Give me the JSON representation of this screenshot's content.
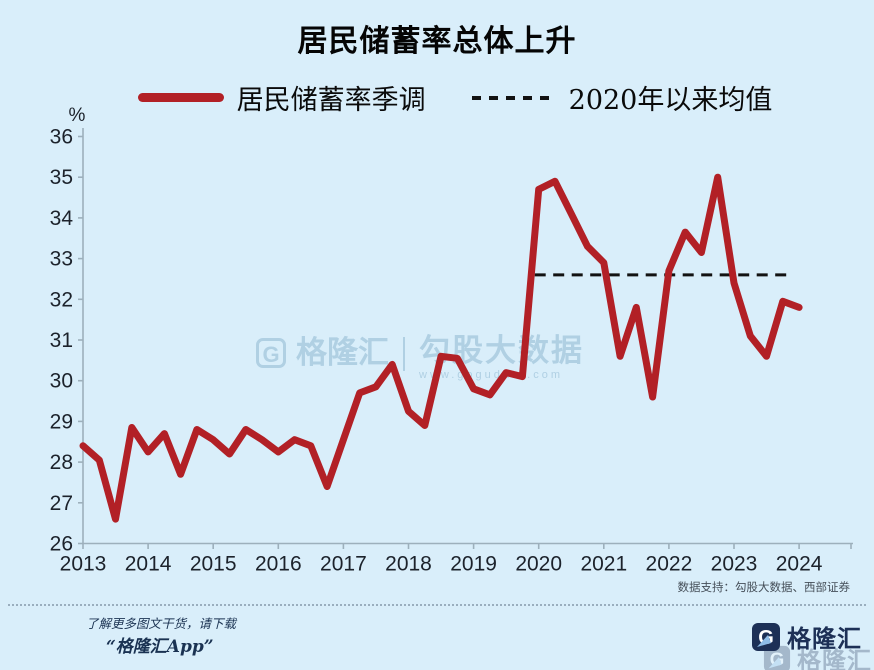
{
  "title": "居民储蓄率总体上升",
  "chart_data": {
    "type": "line",
    "title": "居民储蓄率总体上升",
    "legend_position": "top",
    "grid": false,
    "y_axis": {
      "unit": "%",
      "min": 26,
      "max": 36,
      "tick_step": 1,
      "ticks": [
        26,
        27,
        28,
        29,
        30,
        31,
        32,
        33,
        34,
        35,
        36
      ]
    },
    "x_axis": {
      "year_labels": [
        "2013",
        "2014",
        "2015",
        "2016",
        "2017",
        "2018",
        "2019",
        "2020",
        "2021",
        "2022",
        "2023",
        "2024"
      ]
    },
    "x": [
      "2013Q1",
      "2013Q2",
      "2013Q3",
      "2013Q4",
      "2014Q1",
      "2014Q2",
      "2014Q3",
      "2014Q4",
      "2015Q1",
      "2015Q2",
      "2015Q3",
      "2015Q4",
      "2016Q1",
      "2016Q2",
      "2016Q3",
      "2016Q4",
      "2017Q1",
      "2017Q2",
      "2017Q3",
      "2017Q4",
      "2018Q1",
      "2018Q2",
      "2018Q3",
      "2018Q4",
      "2019Q1",
      "2019Q2",
      "2019Q3",
      "2019Q4",
      "2020Q1",
      "2020Q2",
      "2020Q3",
      "2020Q4",
      "2021Q1",
      "2021Q2",
      "2021Q3",
      "2021Q4",
      "2022Q1",
      "2022Q2",
      "2022Q3",
      "2022Q4",
      "2023Q1",
      "2023Q2",
      "2023Q3",
      "2023Q4",
      "2024Q1"
    ],
    "series": [
      {
        "name": "居民储蓄率季调",
        "color": "#b22026",
        "values": [
          28.4,
          28.05,
          26.6,
          28.85,
          28.25,
          28.7,
          27.7,
          28.8,
          28.55,
          28.2,
          28.8,
          28.55,
          28.25,
          28.55,
          28.4,
          27.4,
          28.55,
          29.7,
          29.85,
          30.4,
          29.25,
          28.9,
          30.6,
          30.55,
          29.8,
          29.65,
          30.2,
          30.1,
          34.7,
          34.9,
          34.1,
          33.3,
          32.9,
          30.6,
          31.8,
          29.6,
          32.7,
          33.65,
          33.15,
          35.0,
          32.4,
          31.1,
          30.6,
          31.95,
          31.8
        ]
      }
    ],
    "mean_line": {
      "label": "2020年以来均值",
      "value": 32.6,
      "from": "2020Q1",
      "to": "2024Q1",
      "style": "dashed",
      "color": "#121212"
    }
  },
  "watermark": {
    "g": "G",
    "brand": "格隆汇",
    "big": "勾股大数据",
    "url": "www.gogudata.com"
  },
  "data_support": "数据支持：勾股大数据、西部证券",
  "footer": {
    "promo_line": "了解更多图文干货，请下载",
    "app_line": "“格隆汇App”",
    "logo_g": "G",
    "logo_text": "格隆汇"
  },
  "colors": {
    "background": "#d9eefa",
    "line": "#b22026",
    "dashed": "#121212",
    "navy": "#1d3056",
    "watermark": "#a9cbe0"
  }
}
